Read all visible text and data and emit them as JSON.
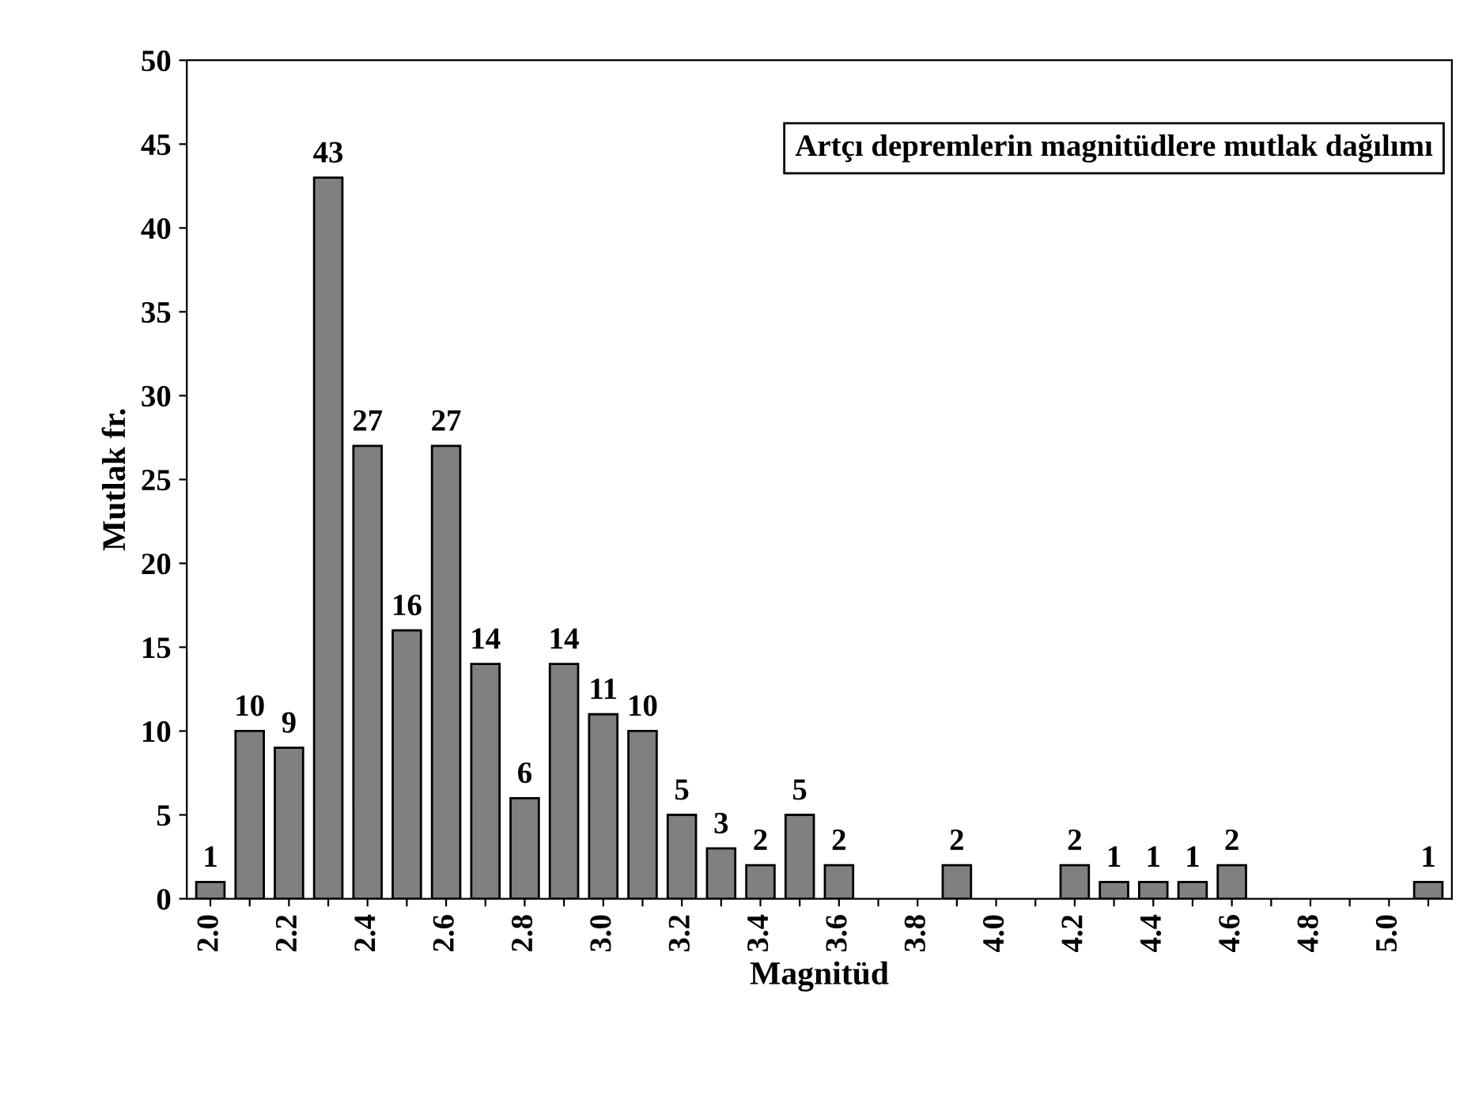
{
  "chart_data": {
    "type": "bar",
    "title": "Artçı depremlerin magnitüdlere mutlak dağılımı",
    "xlabel": "Magnitüd",
    "ylabel": "Mutlak fr.",
    "categories": [
      "2.0",
      null,
      "2.2",
      null,
      "2.4",
      null,
      "2.6",
      null,
      "2.8",
      null,
      "3.0",
      null,
      "3.2",
      null,
      "3.4",
      null,
      "3.6",
      null,
      "3.8",
      null,
      "4.0",
      null,
      "4.2",
      null,
      "4.4",
      null,
      "4.6",
      null,
      "4.8",
      null,
      "5.0",
      null
    ],
    "values": [
      1,
      10,
      9,
      43,
      27,
      16,
      27,
      14,
      6,
      14,
      11,
      10,
      5,
      3,
      2,
      5,
      2,
      null,
      null,
      2,
      null,
      null,
      2,
      1,
      1,
      1,
      2,
      null,
      null,
      null,
      null,
      1
    ],
    "value_labels": [
      "1",
      "10",
      "9",
      "43",
      "27",
      "16",
      "27",
      "14",
      "6",
      "14",
      "11",
      "10",
      "5",
      "3",
      "2",
      "5",
      "2",
      null,
      null,
      "2",
      null,
      null,
      "2",
      "1",
      "1",
      "1",
      "2",
      null,
      null,
      null,
      null,
      "1"
    ],
    "color": "#808080",
    "ylim": [
      0,
      50
    ],
    "yticks": [
      0,
      5,
      10,
      15,
      20,
      25,
      30,
      35,
      40,
      45,
      50
    ],
    "grid": false
  }
}
